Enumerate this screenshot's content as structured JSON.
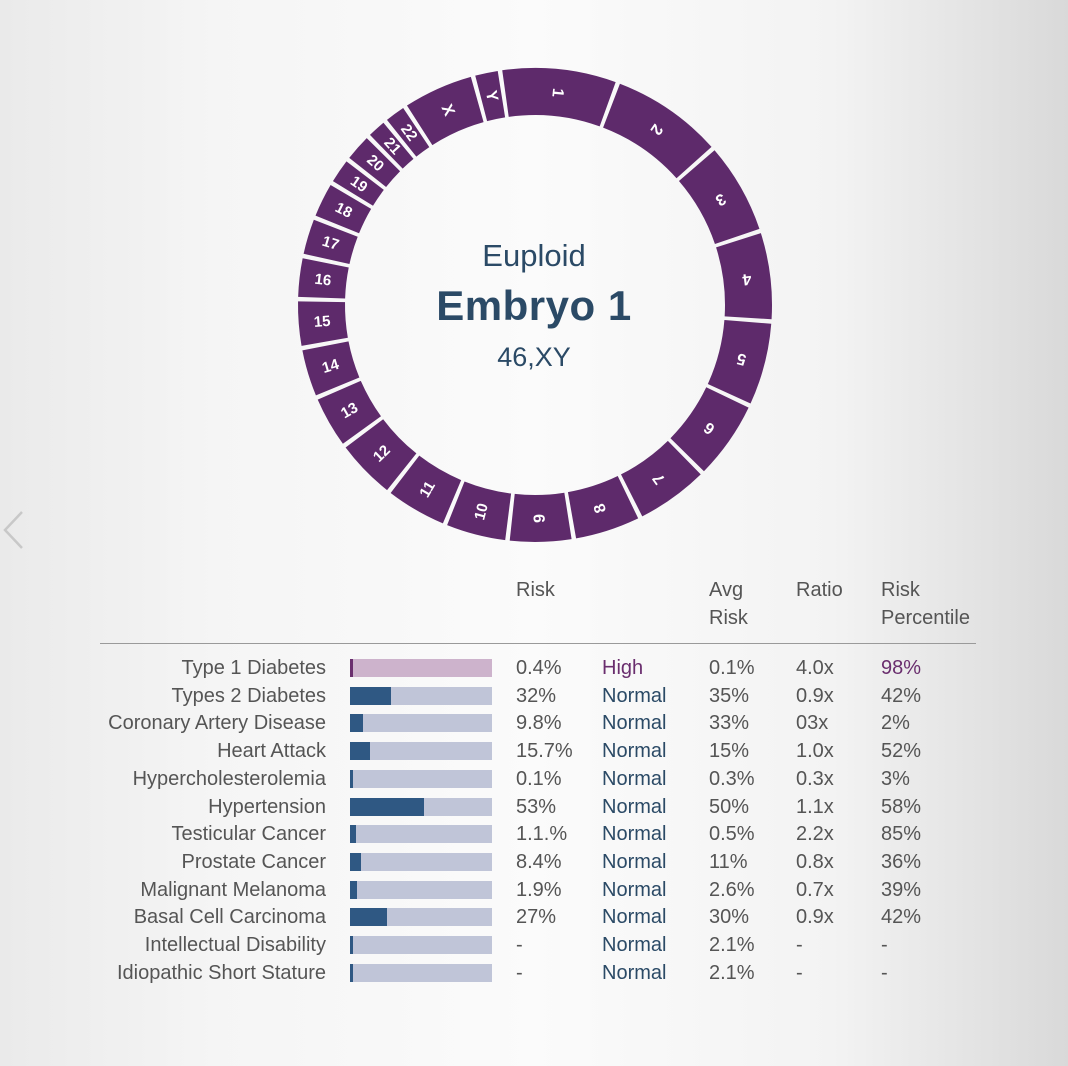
{
  "header": {
    "classification": "Euploid",
    "embryo_name": "Embryo 1",
    "karyotype": "46,XY"
  },
  "ring": {
    "color": "#5e2a6b",
    "segments": [
      {
        "label": "1",
        "size": 248
      },
      {
        "label": "2",
        "size": 242
      },
      {
        "label": "3",
        "size": 198
      },
      {
        "label": "4",
        "size": 190
      },
      {
        "label": "5",
        "size": 181
      },
      {
        "label": "6",
        "size": 171
      },
      {
        "label": "7",
        "size": 159
      },
      {
        "label": "8",
        "size": 145
      },
      {
        "label": "9",
        "size": 138
      },
      {
        "label": "10",
        "size": 134
      },
      {
        "label": "11",
        "size": 135
      },
      {
        "label": "12",
        "size": 133
      },
      {
        "label": "13",
        "size": 115
      },
      {
        "label": "14",
        "size": 107
      },
      {
        "label": "15",
        "size": 102
      },
      {
        "label": "16",
        "size": 90
      },
      {
        "label": "17",
        "size": 83
      },
      {
        "label": "18",
        "size": 80
      },
      {
        "label": "19",
        "size": 59
      },
      {
        "label": "20",
        "size": 64
      },
      {
        "label": "21",
        "size": 47
      },
      {
        "label": "22",
        "size": 51
      },
      {
        "label": "X",
        "size": 155
      },
      {
        "label": "Y",
        "size": 57
      }
    ]
  },
  "table": {
    "headers": {
      "risk": "Risk",
      "avg_risk_line1": "Avg",
      "avg_risk_line2": "Risk",
      "ratio": "Ratio",
      "percentile_line1": "Risk",
      "percentile_line2": "Percentile"
    },
    "rows": [
      {
        "condition": "Type 1 Diabetes",
        "risk": "0.4%",
        "risk_fraction": 0.02,
        "status": "High",
        "avg_risk": "0.1%",
        "ratio": "4.0x",
        "percentile": "98%"
      },
      {
        "condition": "Types 2 Diabetes",
        "risk": "32%",
        "risk_fraction": 0.29,
        "status": "Normal",
        "avg_risk": "35%",
        "ratio": "0.9x",
        "percentile": "42%"
      },
      {
        "condition": "Coronary Artery Disease",
        "risk": "9.8%",
        "risk_fraction": 0.09,
        "status": "Normal",
        "avg_risk": "33%",
        "ratio": "03x",
        "percentile": "2%"
      },
      {
        "condition": "Heart Attack",
        "risk": "15.7%",
        "risk_fraction": 0.14,
        "status": "Normal",
        "avg_risk": "15%",
        "ratio": "1.0x",
        "percentile": "52%"
      },
      {
        "condition": "Hypercholesterolemia",
        "risk": "0.1%",
        "risk_fraction": 0.02,
        "status": "Normal",
        "avg_risk": "0.3%",
        "ratio": "0.3x",
        "percentile": "3%"
      },
      {
        "condition": "Hypertension",
        "risk": "53%",
        "risk_fraction": 0.52,
        "status": "Normal",
        "avg_risk": "50%",
        "ratio": "1.1x",
        "percentile": "58%"
      },
      {
        "condition": "Testicular Cancer",
        "risk": "1.1.%",
        "risk_fraction": 0.04,
        "status": "Normal",
        "avg_risk": "0.5%",
        "ratio": "2.2x",
        "percentile": "85%"
      },
      {
        "condition": "Prostate Cancer",
        "risk": "8.4%",
        "risk_fraction": 0.08,
        "status": "Normal",
        "avg_risk": "11%",
        "ratio": "0.8x",
        "percentile": "36%"
      },
      {
        "condition": "Malignant Melanoma",
        "risk": "1.9%",
        "risk_fraction": 0.05,
        "status": "Normal",
        "avg_risk": "2.6%",
        "ratio": "0.7x",
        "percentile": "39%"
      },
      {
        "condition": "Basal Cell Carcinoma",
        "risk": "27%",
        "risk_fraction": 0.26,
        "status": "Normal",
        "avg_risk": "30%",
        "ratio": "0.9x",
        "percentile": "42%"
      },
      {
        "condition": "Intellectual Disability",
        "risk": "-",
        "risk_fraction": 0.02,
        "status": "Normal",
        "avg_risk": "2.1%",
        "ratio": "-",
        "percentile": "-"
      },
      {
        "condition": "Idiopathic Short Stature",
        "risk": "-",
        "risk_fraction": 0.02,
        "status": "Normal",
        "avg_risk": "2.1%",
        "ratio": "-",
        "percentile": "-"
      }
    ]
  }
}
